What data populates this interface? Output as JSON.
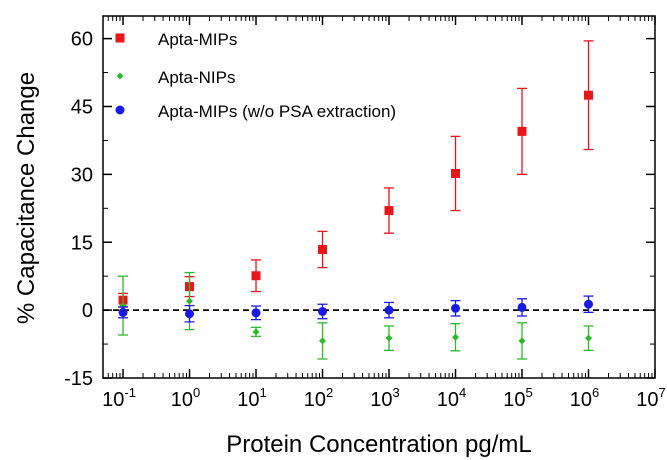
{
  "chart_data": {
    "type": "scatter",
    "xlabel": "Protein Concentration pg/mL",
    "ylabel": "% Capacitance Change",
    "x_scale": "log",
    "xlim": [
      0.05,
      10000000
    ],
    "ylim": [
      -15,
      65
    ],
    "x_ticks": [
      {
        "base": "10",
        "exp": "-1"
      },
      {
        "base": "10",
        "exp": "0"
      },
      {
        "base": "10",
        "exp": "1"
      },
      {
        "base": "10",
        "exp": "2"
      },
      {
        "base": "10",
        "exp": "3"
      },
      {
        "base": "10",
        "exp": "4"
      },
      {
        "base": "10",
        "exp": "5"
      },
      {
        "base": "10",
        "exp": "6"
      },
      {
        "base": "10",
        "exp": "7"
      }
    ],
    "y_ticks": [
      "-15",
      "0",
      "15",
      "30",
      "45",
      "60"
    ],
    "reference_line": {
      "y": 0,
      "style": "dashed"
    },
    "legend_position": "top-left",
    "series": [
      {
        "name": "Apta-MIPs",
        "marker": "square",
        "color": "#e8161b",
        "x": [
          0.1,
          1,
          10,
          100,
          1000,
          10000,
          100000,
          1000000
        ],
        "y": [
          2.2,
          5.2,
          7.6,
          13.4,
          22.0,
          30.2,
          39.5,
          47.5
        ],
        "err": [
          1.5,
          2.2,
          3.5,
          4.0,
          5.0,
          8.2,
          9.5,
          12.0
        ]
      },
      {
        "name": "Apta-NIPs",
        "marker": "diamond",
        "color": "#2db82d",
        "x": [
          0.1,
          1,
          10,
          100,
          1000,
          10000,
          100000,
          1000000
        ],
        "y": [
          1.0,
          2.0,
          -4.8,
          -6.8,
          -6.2,
          -6.0,
          -6.8,
          -6.2
        ],
        "err": [
          6.5,
          6.3,
          1.0,
          4.0,
          2.7,
          3.0,
          4.0,
          2.7
        ]
      },
      {
        "name": "Apta-MIPs (w/o PSA extraction)",
        "marker": "circle",
        "color": "#1a1ae6",
        "x": [
          0.1,
          1,
          10,
          100,
          1000,
          10000,
          100000,
          1000000
        ],
        "y": [
          -0.5,
          -0.8,
          -0.6,
          -0.3,
          0.0,
          0.4,
          0.6,
          1.3
        ],
        "err": [
          1.2,
          1.8,
          1.5,
          1.6,
          1.7,
          1.7,
          1.9,
          1.8
        ]
      }
    ]
  }
}
